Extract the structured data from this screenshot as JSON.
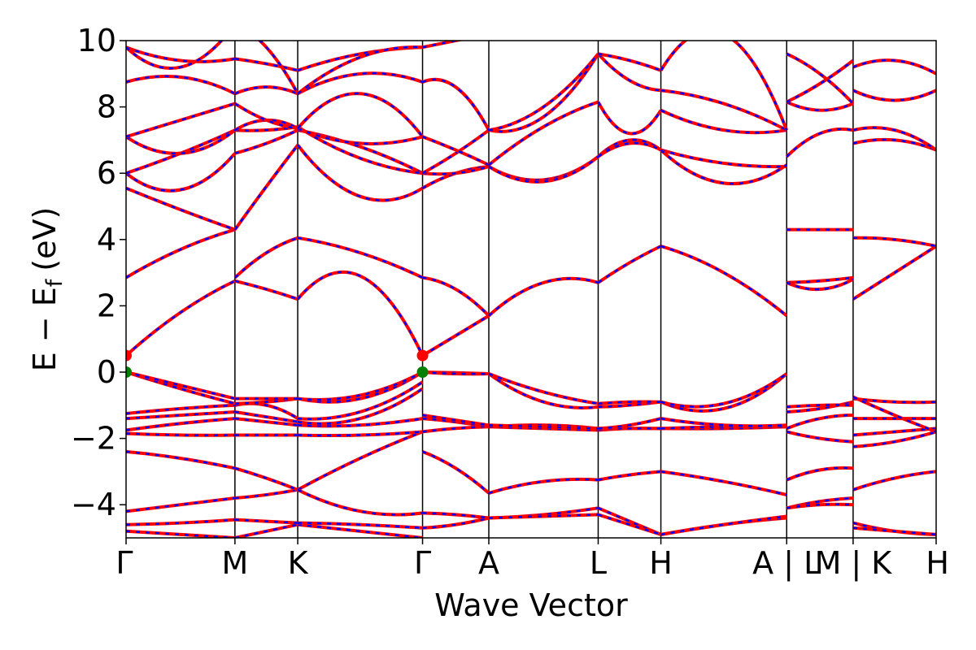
{
  "chart_data": {
    "type": "line",
    "title": "",
    "xlabel": "Wave Vector",
    "ylabel": "E − E",
    "ylabel_subscript": "f",
    "ylabel_unit": "(eV)",
    "ylim": [
      -5,
      10
    ],
    "yticks": [
      -4,
      -2,
      0,
      2,
      4,
      6,
      8,
      10
    ],
    "ytick_labels": [
      "−4",
      "−2",
      "0",
      "2",
      "4",
      "6",
      "8",
      "10"
    ],
    "grid": false,
    "legend": "none",
    "xlim": [
      0,
      1
    ],
    "kpoints": [
      {
        "label": "Γ",
        "x": 0.0
      },
      {
        "label": "M",
        "x": 0.1344
      },
      {
        "label": "K",
        "x": 0.2119
      },
      {
        "label": "Γ",
        "x": 0.366
      },
      {
        "label": "A",
        "x": 0.4478
      },
      {
        "label": "L",
        "x": 0.5828
      },
      {
        "label": "H",
        "x": 0.6602
      },
      {
        "label": "A | L",
        "x": 0.8155
      },
      {
        "label": "M | K",
        "x": 0.8975
      },
      {
        "label": "H",
        "x": 1.0
      }
    ],
    "colors": {
      "up": "#ff0000",
      "down": "#0000ff",
      "vbm": "#008000",
      "cbm": "#ff0000",
      "vline": "#000000"
    },
    "segments": [
      {
        "x_from": 0.0,
        "x_to": 0.1344,
        "bands": [
          [
            -4.8,
            -4.9,
            -5.0
          ],
          [
            -4.6,
            -4.55,
            -4.45
          ],
          [
            -4.2,
            -4.0,
            -3.8
          ],
          [
            -2.4,
            -2.6,
            -2.9
          ],
          [
            -1.85,
            -1.9,
            -1.9
          ],
          [
            -1.75,
            -1.55,
            -1.4
          ],
          [
            -1.4,
            -1.3,
            -1.2
          ],
          [
            -1.25,
            -1.1,
            -1.0
          ],
          [
            0.0,
            -0.5,
            -0.95
          ],
          [
            0.0,
            -0.4,
            -0.8
          ],
          [
            0.5,
            1.8,
            2.75
          ],
          [
            2.85,
            3.7,
            4.3
          ],
          [
            5.55,
            4.9,
            4.3
          ],
          [
            6.0,
            5.5,
            6.6
          ],
          [
            6.0,
            6.6,
            7.3
          ],
          [
            7.1,
            6.6,
            7.3
          ],
          [
            7.1,
            7.6,
            8.1
          ],
          [
            8.75,
            8.9,
            8.4
          ],
          [
            9.8,
            9.4,
            9.45
          ],
          [
            9.8,
            9.2,
            10.5
          ]
        ]
      },
      {
        "x_from": 0.1344,
        "x_to": 0.2119,
        "bands": [
          [
            -5.0,
            -4.8,
            -4.6
          ],
          [
            -4.45,
            -4.5,
            -4.55
          ],
          [
            -3.8,
            -3.7,
            -3.55
          ],
          [
            -2.9,
            -3.2,
            -3.55
          ],
          [
            -1.9,
            -1.9,
            -1.9
          ],
          [
            -1.4,
            -1.5,
            -1.6
          ],
          [
            -1.2,
            -1.35,
            -1.5
          ],
          [
            -1.0,
            -1.0,
            -1.4
          ],
          [
            -0.95,
            -0.9,
            -0.8
          ],
          [
            -0.8,
            -0.8,
            -0.8
          ],
          [
            2.75,
            2.5,
            2.2
          ],
          [
            2.85,
            3.6,
            4.05
          ],
          [
            4.3,
            5.6,
            6.85
          ],
          [
            6.6,
            6.9,
            7.3
          ],
          [
            7.3,
            7.3,
            7.4
          ],
          [
            7.3,
            7.6,
            7.35
          ],
          [
            8.1,
            7.6,
            7.35
          ],
          [
            8.4,
            8.6,
            8.4
          ],
          [
            9.45,
            9.3,
            9.1
          ],
          [
            10.5,
            9.8,
            8.4
          ]
        ]
      },
      {
        "x_from": 0.2119,
        "x_to": 0.366,
        "bands": [
          [
            -4.6,
            -4.8,
            -5.0
          ],
          [
            -4.55,
            -4.6,
            -4.7
          ],
          [
            -3.55,
            -2.6,
            -1.8
          ],
          [
            -3.55,
            -4.2,
            -4.25
          ],
          [
            -1.9,
            -1.9,
            -1.8
          ],
          [
            -1.6,
            -1.6,
            -1.4
          ],
          [
            -1.5,
            -1.4,
            -0.5
          ],
          [
            -1.4,
            -1.2,
            -0.3
          ],
          [
            -0.8,
            -0.8,
            0.0
          ],
          [
            -0.8,
            -0.7,
            0.0
          ],
          [
            2.2,
            2.9,
            0.5
          ],
          [
            4.05,
            3.6,
            2.85
          ],
          [
            6.85,
            5.3,
            5.55
          ],
          [
            7.3,
            6.8,
            6.0
          ],
          [
            7.4,
            6.45,
            6.0
          ],
          [
            7.35,
            6.9,
            7.1
          ],
          [
            7.35,
            8.4,
            7.1
          ],
          [
            8.4,
            9.0,
            8.75
          ],
          [
            9.1,
            9.6,
            9.8
          ],
          [
            8.4,
            9.5,
            9.8
          ]
        ]
      },
      {
        "x_from": 0.366,
        "x_to": 0.4478,
        "bands": [
          [
            -4.7,
            -4.6,
            -4.4
          ],
          [
            -4.25,
            -4.3,
            -4.4
          ],
          [
            -2.4,
            -2.9,
            -3.65
          ],
          [
            -1.8,
            -1.7,
            -1.65
          ],
          [
            -1.4,
            -1.5,
            -1.65
          ],
          [
            -1.3,
            -1.45,
            -1.6
          ],
          [
            0.0,
            -0.02,
            -0.05
          ],
          [
            0.0,
            -0.05,
            -0.05
          ],
          [
            0.5,
            1.1,
            1.7
          ],
          [
            2.85,
            2.5,
            1.7
          ],
          [
            5.55,
            6.0,
            6.2
          ],
          [
            6.0,
            6.0,
            6.2
          ],
          [
            6.0,
            6.6,
            7.3
          ],
          [
            7.1,
            6.7,
            6.25
          ],
          [
            8.75,
            8.6,
            7.3
          ],
          [
            9.8,
            10.0,
            10.2
          ]
        ]
      },
      {
        "x_from": 0.4478,
        "x_to": 0.5828,
        "bands": [
          [
            -4.4,
            -4.3,
            -4.1
          ],
          [
            -4.4,
            -4.35,
            -4.3
          ],
          [
            -3.65,
            -3.3,
            -3.25
          ],
          [
            -1.65,
            -1.7,
            -1.75
          ],
          [
            -1.65,
            -1.6,
            -1.7
          ],
          [
            -1.6,
            -1.65,
            -1.7
          ],
          [
            -0.05,
            -0.9,
            -1.05
          ],
          [
            -0.05,
            -0.6,
            -0.95
          ],
          [
            1.7,
            2.7,
            2.7
          ],
          [
            6.2,
            5.8,
            6.5
          ],
          [
            6.2,
            5.75,
            6.5
          ],
          [
            6.25,
            7.4,
            8.15
          ],
          [
            7.3,
            7.7,
            9.6
          ],
          [
            7.3,
            8.0,
            9.6
          ]
        ]
      },
      {
        "x_from": 0.5828,
        "x_to": 0.6602,
        "bands": [
          [
            -4.1,
            -4.5,
            -4.9
          ],
          [
            -4.3,
            -4.6,
            -4.9
          ],
          [
            -3.25,
            -3.1,
            -3.0
          ],
          [
            -1.75,
            -1.7,
            -1.7
          ],
          [
            -1.7,
            -1.7,
            -1.7
          ],
          [
            -1.7,
            -1.6,
            -1.4
          ],
          [
            -1.05,
            -1.0,
            -0.9
          ],
          [
            -0.95,
            -0.9,
            -0.9
          ],
          [
            2.7,
            3.3,
            3.8
          ],
          [
            6.5,
            7.0,
            6.7
          ],
          [
            6.5,
            6.9,
            6.7
          ],
          [
            8.15,
            7.2,
            7.9
          ],
          [
            9.6,
            8.8,
            8.5
          ],
          [
            9.6,
            9.4,
            9.1
          ]
        ]
      },
      {
        "x_from": 0.6602,
        "x_to": 0.8155,
        "bands": [
          [
            -4.9,
            -4.6,
            -4.4
          ],
          [
            -4.9,
            -4.6,
            -4.35
          ],
          [
            -3.0,
            -3.3,
            -3.7
          ],
          [
            -1.7,
            -1.7,
            -1.65
          ],
          [
            -1.7,
            -1.65,
            -1.65
          ],
          [
            -1.4,
            -1.6,
            -1.6
          ],
          [
            -0.9,
            -1.1,
            -0.05
          ],
          [
            -0.9,
            -0.95,
            -0.05
          ],
          [
            3.8,
            3.0,
            1.7
          ],
          [
            6.7,
            6.3,
            6.2
          ],
          [
            6.7,
            5.7,
            6.25
          ],
          [
            7.9,
            7.3,
            7.3
          ],
          [
            8.5,
            8.1,
            7.3
          ],
          [
            9.1,
            10.2,
            7.3
          ]
        ]
      },
      {
        "x_from": 0.8155,
        "x_to": 0.8975,
        "bands": [
          [
            -4.1,
            -3.9,
            -3.8
          ],
          [
            -4.1,
            -4.0,
            -4.0
          ],
          [
            -3.25,
            -2.95,
            -2.9
          ],
          [
            -1.8,
            -2.0,
            -2.1
          ],
          [
            -1.7,
            -1.4,
            -1.3
          ],
          [
            -1.2,
            -1.1,
            -0.9
          ],
          [
            -1.05,
            -1.0,
            -1.0
          ],
          [
            2.7,
            2.75,
            2.85
          ],
          [
            2.7,
            2.5,
            2.8
          ],
          [
            4.3,
            4.3,
            4.3
          ],
          [
            6.5,
            7.2,
            7.3
          ],
          [
            8.15,
            7.9,
            8.1
          ],
          [
            8.15,
            8.7,
            9.4
          ],
          [
            9.6,
            9.0,
            8.1
          ]
        ]
      },
      {
        "x_from": 0.8975,
        "x_to": 1.0,
        "bands": [
          [
            -4.55,
            -4.8,
            -4.9
          ],
          [
            -4.7,
            -4.8,
            -4.9
          ],
          [
            -3.55,
            -3.2,
            -3.0
          ],
          [
            -2.25,
            -2.1,
            -1.8
          ],
          [
            -1.9,
            -1.8,
            -1.7
          ],
          [
            -1.4,
            -1.4,
            -1.4
          ],
          [
            -0.8,
            -0.9,
            -0.9
          ],
          [
            -0.75,
            -1.3,
            -1.8
          ],
          [
            2.2,
            3.0,
            3.8
          ],
          [
            4.05,
            4.0,
            3.8
          ],
          [
            6.9,
            7.0,
            6.7
          ],
          [
            7.3,
            7.3,
            6.7
          ],
          [
            8.5,
            8.2,
            8.5
          ],
          [
            9.2,
            9.4,
            9.0
          ]
        ]
      }
    ],
    "markers": [
      {
        "type": "vbm",
        "x": 0.0,
        "y": 0.0
      },
      {
        "type": "cbm",
        "x": 0.0,
        "y": 0.5
      },
      {
        "type": "vbm",
        "x": 0.366,
        "y": 0.0
      },
      {
        "type": "cbm",
        "x": 0.366,
        "y": 0.5
      }
    ]
  }
}
